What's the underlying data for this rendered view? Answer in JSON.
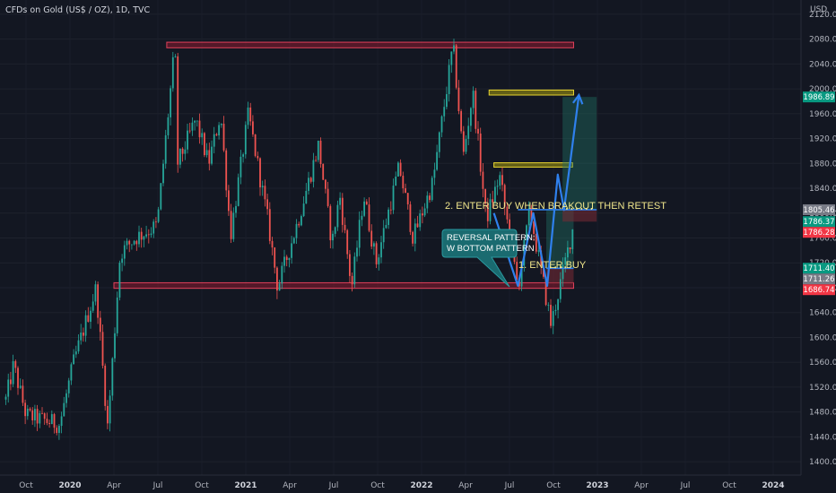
{
  "window": {
    "title": "CFDs on Gold (US$ / OZ), 1D, TVC",
    "currency": "USD"
  },
  "colors": {
    "background": "#131722",
    "candle_up": "#26a69a",
    "candle_down": "#ef5350",
    "resistance_zone": "#b71c3c",
    "target_zone": "#d4c020",
    "arrow": "#2f80ed",
    "profit_zone": "#1b5e52",
    "loss_zone": "#5c2129"
  },
  "annotations": {
    "entry1": "1. ENTER BUY",
    "entry2": "2. ENTER BUY WHEN BRAKOUT THEN RETEST",
    "callout_line1": "REVERSAL PATTERN:",
    "callout_line2": "W BOTTOM PATTERN"
  },
  "price_labels": [
    {
      "value": "1986.89",
      "color": "#089981"
    },
    {
      "value": "1805.46",
      "color": "#787b86"
    },
    {
      "value": "1786.37",
      "color": "#089981"
    },
    {
      "value": "1786.28",
      "color": "#f23645"
    },
    {
      "value": "1711.40",
      "color": "#089981"
    },
    {
      "value": "1711.26",
      "color": "#787b86"
    },
    {
      "value": "1686.74",
      "color": "#f23645"
    }
  ],
  "chart_data": {
    "type": "candlestick",
    "title": "CFDs on Gold (US$ / OZ), 1D, TVC",
    "y_unit": "USD",
    "ylim": [
      1380,
      2140
    ],
    "y_ticks": [
      2120,
      2080,
      2040,
      2000,
      1960,
      1920,
      1880,
      1840,
      1800,
      1760,
      1720,
      1680,
      1640,
      1600,
      1560,
      1520,
      1480,
      1440,
      1400
    ],
    "x_ticks": [
      {
        "label": "Oct",
        "year": false
      },
      {
        "label": "2020",
        "year": true
      },
      {
        "label": "Apr",
        "year": false
      },
      {
        "label": "Jul",
        "year": false
      },
      {
        "label": "Oct",
        "year": false
      },
      {
        "label": "2021",
        "year": true
      },
      {
        "label": "Apr",
        "year": false
      },
      {
        "label": "Jul",
        "year": false
      },
      {
        "label": "Oct",
        "year": false
      },
      {
        "label": "2022",
        "year": true
      },
      {
        "label": "Apr",
        "year": false
      },
      {
        "label": "Jul",
        "year": false
      },
      {
        "label": "Oct",
        "year": false
      },
      {
        "label": "2023",
        "year": true
      },
      {
        "label": "Apr",
        "year": false
      },
      {
        "label": "Jul",
        "year": false
      },
      {
        "label": "Oct",
        "year": false
      },
      {
        "label": "2024",
        "year": true
      }
    ],
    "price_path": [
      {
        "date": "2019-08-20",
        "price": 1500
      },
      {
        "date": "2019-09-05",
        "price": 1555
      },
      {
        "date": "2019-10-01",
        "price": 1475
      },
      {
        "date": "2019-11-15",
        "price": 1465
      },
      {
        "date": "2019-12-10",
        "price": 1460
      },
      {
        "date": "2020-01-08",
        "price": 1560
      },
      {
        "date": "2020-02-24",
        "price": 1680
      },
      {
        "date": "2020-03-19",
        "price": 1455
      },
      {
        "date": "2020-04-14",
        "price": 1735
      },
      {
        "date": "2020-05-15",
        "price": 1760
      },
      {
        "date": "2020-06-30",
        "price": 1780
      },
      {
        "date": "2020-08-06",
        "price": 2070
      },
      {
        "date": "2020-08-12",
        "price": 1880
      },
      {
        "date": "2020-09-18",
        "price": 1950
      },
      {
        "date": "2020-10-15",
        "price": 1880
      },
      {
        "date": "2020-11-09",
        "price": 1960
      },
      {
        "date": "2020-11-30",
        "price": 1765
      },
      {
        "date": "2021-01-06",
        "price": 1960
      },
      {
        "date": "2021-02-15",
        "price": 1790
      },
      {
        "date": "2021-03-08",
        "price": 1680
      },
      {
        "date": "2021-04-20",
        "price": 1790
      },
      {
        "date": "2021-06-01",
        "price": 1910
      },
      {
        "date": "2021-06-29",
        "price": 1750
      },
      {
        "date": "2021-07-15",
        "price": 1830
      },
      {
        "date": "2021-08-09",
        "price": 1680
      },
      {
        "date": "2021-09-03",
        "price": 1830
      },
      {
        "date": "2021-09-29",
        "price": 1720
      },
      {
        "date": "2021-11-16",
        "price": 1875
      },
      {
        "date": "2021-12-15",
        "price": 1760
      },
      {
        "date": "2022-01-25",
        "price": 1850
      },
      {
        "date": "2022-03-08",
        "price": 2070
      },
      {
        "date": "2022-03-29",
        "price": 1890
      },
      {
        "date": "2022-04-18",
        "price": 1995
      },
      {
        "date": "2022-05-16",
        "price": 1790
      },
      {
        "date": "2022-06-13",
        "price": 1860
      },
      {
        "date": "2022-07-21",
        "price": 1680
      },
      {
        "date": "2022-08-15",
        "price": 1805
      },
      {
        "date": "2022-09-28",
        "price": 1620
      },
      {
        "date": "2022-11-15",
        "price": 1785
      }
    ],
    "drawings": {
      "resistance_box": {
        "from": "2020-07-20",
        "to": "2022-11-14",
        "low": 2066,
        "high": 2075
      },
      "support_box": {
        "from": "2020-04-01",
        "to": "2022-11-14",
        "low": 1679,
        "high": 1688
      },
      "target_box_top": {
        "from": "2022-05-22",
        "to": "2022-11-14",
        "low": 1990,
        "high": 1998
      },
      "target_box_mid": {
        "from": "2022-06-01",
        "to": "2022-11-12",
        "low": 1874,
        "high": 1881
      },
      "w_pattern_arrow": [
        {
          "date": "2022-06-01",
          "price": 1800
        },
        {
          "date": "2022-07-21",
          "price": 1683
        },
        {
          "date": "2022-08-22",
          "price": 1800
        },
        {
          "date": "2022-09-20",
          "price": 1683
        },
        {
          "date": "2022-10-12",
          "price": 1862
        },
        {
          "date": "2022-10-25",
          "price": 1805
        },
        {
          "date": "2022-11-25",
          "price": 1990
        }
      ],
      "level_lines": [
        {
          "from": "2022-07-21",
          "to": "2023-01-01",
          "price": 1805.46
        },
        {
          "from": "2022-09-18",
          "to": "2022-11-14",
          "price": 1711.26
        }
      ],
      "position_1": {
        "from": "2022-09-18",
        "to": "2022-11-14",
        "entry": 1711.26,
        "stop": 1686.74,
        "target": 1805.46
      },
      "position_2": {
        "from": "2022-10-22",
        "to": "2023-01-01",
        "entry": 1805.46,
        "stop": 1786.28,
        "target": 1986.89
      }
    }
  }
}
